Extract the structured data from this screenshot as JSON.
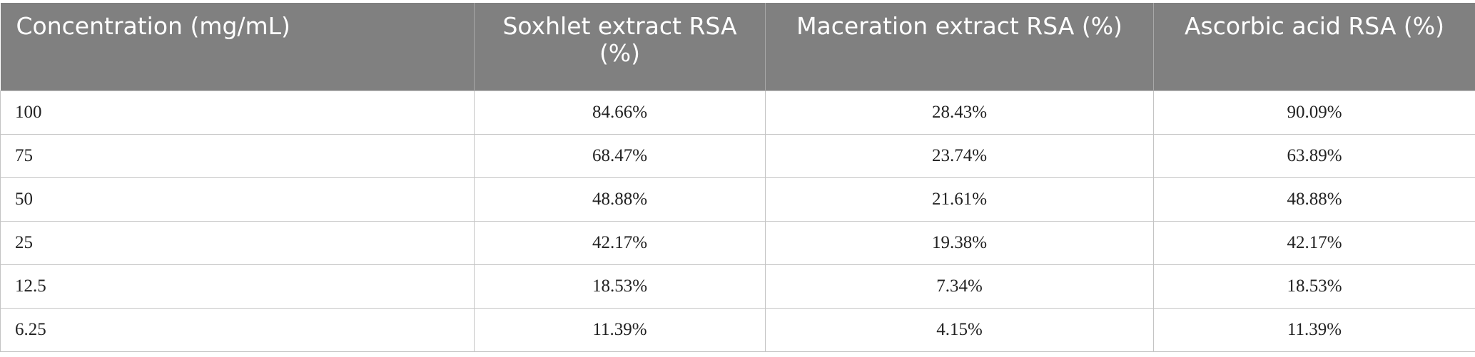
{
  "table": {
    "header": [
      "Concentration (mg/mL)",
      "Soxhlet extract RSA (%)",
      "Maceration extract RSA (%)",
      "Ascorbic acid RSA (%)"
    ],
    "rows": [
      [
        "100",
        "84.66%",
        "28.43%",
        "90.09%"
      ],
      [
        "75",
        "68.47%",
        "23.74%",
        "63.89%"
      ],
      [
        "50",
        "48.88%",
        "21.61%",
        "48.88%"
      ],
      [
        "25",
        "42.17%",
        "19.38%",
        "42.17%"
      ],
      [
        "12.5",
        "18.53%",
        "7.34%",
        "18.53%"
      ],
      [
        "6.25",
        "11.39%",
        "4.15%",
        "11.39%"
      ]
    ]
  }
}
